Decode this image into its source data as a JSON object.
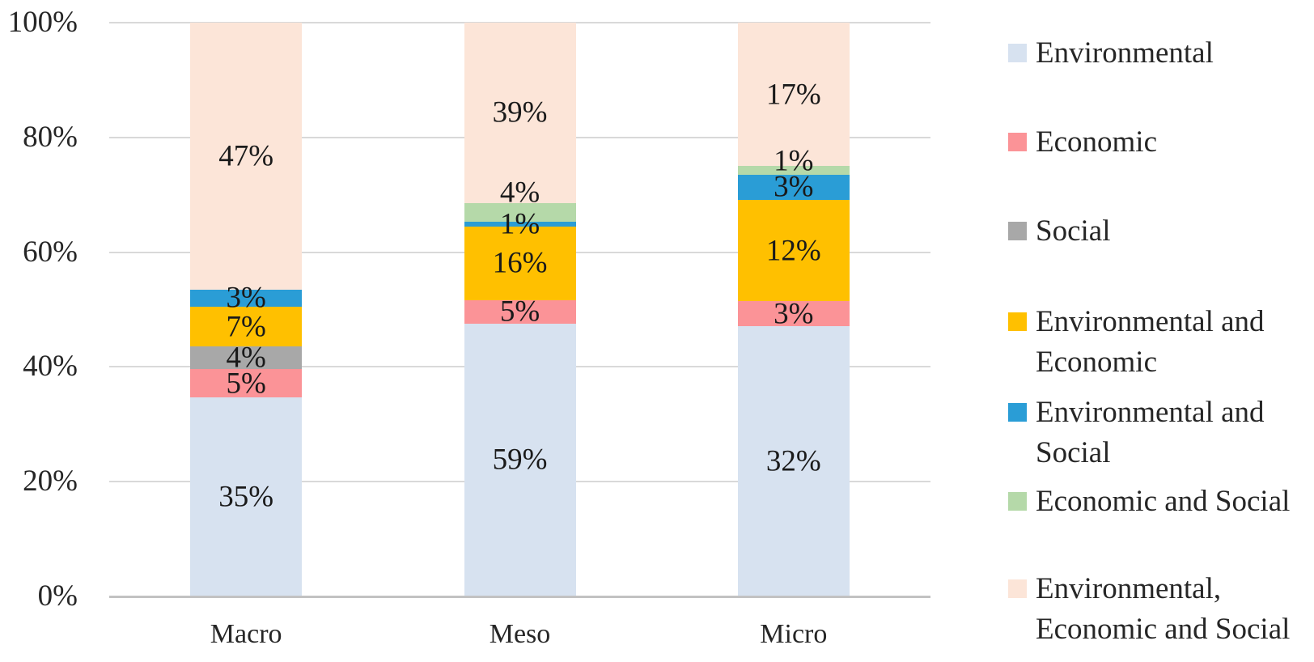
{
  "chart_data": {
    "type": "bar",
    "subtype": "stacked-percent",
    "title": "",
    "categories": [
      "Macro",
      "Meso",
      "Micro"
    ],
    "series": [
      {
        "name": "Environmental",
        "color": "#D7E2F0",
        "values": [
          35,
          59,
          32
        ]
      },
      {
        "name": "Economic",
        "color": "#FB9397",
        "values": [
          5,
          5,
          3
        ]
      },
      {
        "name": "Social",
        "color": "#A8A8A8",
        "values": [
          4,
          0,
          0
        ]
      },
      {
        "name": "Environmental and Economic",
        "color": "#FFC000",
        "values": [
          7,
          16,
          12
        ]
      },
      {
        "name": "Environmental and Social",
        "color": "#2A9DD6",
        "values": [
          3,
          1,
          3
        ]
      },
      {
        "name": "Economic and Social",
        "color": "#B5D9A9",
        "values": [
          0,
          4,
          1
        ],
        "label_dy": [
          0,
          -24,
          -11
        ]
      },
      {
        "name": "Environmental, Economic and Social",
        "color": "#FCE5D8",
        "values": [
          47,
          39,
          17
        ]
      }
    ],
    "value_suffix": "%",
    "y_axis": {
      "min": 0,
      "max": 100,
      "tick_labels": [
        "0%",
        "20%",
        "40%",
        "60%",
        "80%",
        "100%"
      ]
    },
    "grid": true,
    "legend_position": "right"
  }
}
